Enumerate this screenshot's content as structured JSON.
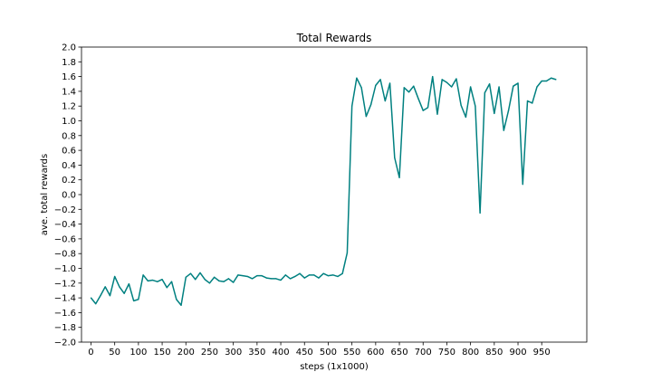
{
  "chart_data": {
    "type": "line",
    "title": "Total Rewards",
    "xlabel": "steps (1x1000)",
    "ylabel": "ave. total rewards",
    "xlim": [
      -20,
      1045
    ],
    "ylim": [
      -2.0,
      2.0
    ],
    "xticks": [
      0,
      50,
      100,
      150,
      200,
      250,
      300,
      350,
      400,
      450,
      500,
      550,
      600,
      650,
      700,
      750,
      800,
      850,
      900,
      950
    ],
    "yticks": [
      -2.0,
      -1.8,
      -1.6,
      -1.4,
      -1.2,
      -1.0,
      -0.8,
      -0.6,
      -0.4,
      -0.2,
      0.0,
      0.2,
      0.4,
      0.6,
      0.8,
      1.0,
      1.2,
      1.4,
      1.6,
      1.8,
      2.0
    ],
    "ytick_labels": [
      "−2.0",
      "−1.8",
      "−1.6",
      "−1.4",
      "−1.2",
      "−1.0",
      "−0.8",
      "−0.6",
      "−0.4",
      "−0.2",
      "0.0",
      "0.2",
      "0.4",
      "0.6",
      "0.8",
      "1.0",
      "1.2",
      "1.4",
      "1.6",
      "1.8",
      "2.0"
    ],
    "grid": false,
    "line_color": "#008080",
    "series": [
      {
        "x": [
          0,
          10,
          20,
          30,
          40,
          50,
          60,
          70,
          80,
          90,
          100,
          110,
          120,
          130,
          140,
          150,
          160,
          170,
          180,
          190,
          200,
          210,
          220,
          230,
          240,
          250,
          260,
          270,
          280,
          290,
          300,
          310,
          320,
          330,
          340,
          350,
          360,
          370,
          380,
          390,
          400,
          410,
          420,
          430,
          440,
          450,
          460,
          470,
          480,
          490,
          500,
          510,
          520,
          530,
          540,
          550,
          560,
          570,
          580,
          590,
          600,
          610,
          620,
          630,
          640,
          650,
          660,
          670,
          680,
          690,
          700,
          710,
          720,
          730,
          740,
          750,
          760,
          770,
          780,
          790,
          800,
          810,
          820,
          830,
          840,
          850,
          860,
          870,
          880,
          890,
          900,
          910,
          920,
          930,
          940,
          950,
          960,
          970,
          980
        ],
        "values": [
          -1.4,
          -1.48,
          -1.37,
          -1.25,
          -1.37,
          -1.11,
          -1.25,
          -1.34,
          -1.21,
          -1.44,
          -1.42,
          -1.09,
          -1.17,
          -1.16,
          -1.18,
          -1.15,
          -1.26,
          -1.18,
          -1.42,
          -1.5,
          -1.12,
          -1.07,
          -1.15,
          -1.06,
          -1.15,
          -1.2,
          -1.12,
          -1.17,
          -1.18,
          -1.14,
          -1.19,
          -1.09,
          -1.1,
          -1.11,
          -1.14,
          -1.1,
          -1.1,
          -1.13,
          -1.14,
          -1.14,
          -1.16,
          -1.09,
          -1.14,
          -1.11,
          -1.07,
          -1.13,
          -1.09,
          -1.09,
          -1.13,
          -1.07,
          -1.1,
          -1.09,
          -1.11,
          -1.07,
          -0.79,
          1.2,
          1.58,
          1.45,
          1.06,
          1.22,
          1.48,
          1.56,
          1.27,
          1.51,
          0.5,
          0.23,
          1.45,
          1.39,
          1.47,
          1.3,
          1.14,
          1.18,
          1.6,
          1.09,
          1.56,
          1.52,
          1.46,
          1.57,
          1.21,
          1.05,
          1.46,
          1.2,
          -0.25,
          1.38,
          1.5,
          1.1,
          1.46,
          0.87,
          1.14,
          1.47,
          1.51,
          0.14,
          1.27,
          1.24,
          1.46,
          1.54,
          1.54,
          1.58,
          1.56
        ]
      }
    ]
  }
}
